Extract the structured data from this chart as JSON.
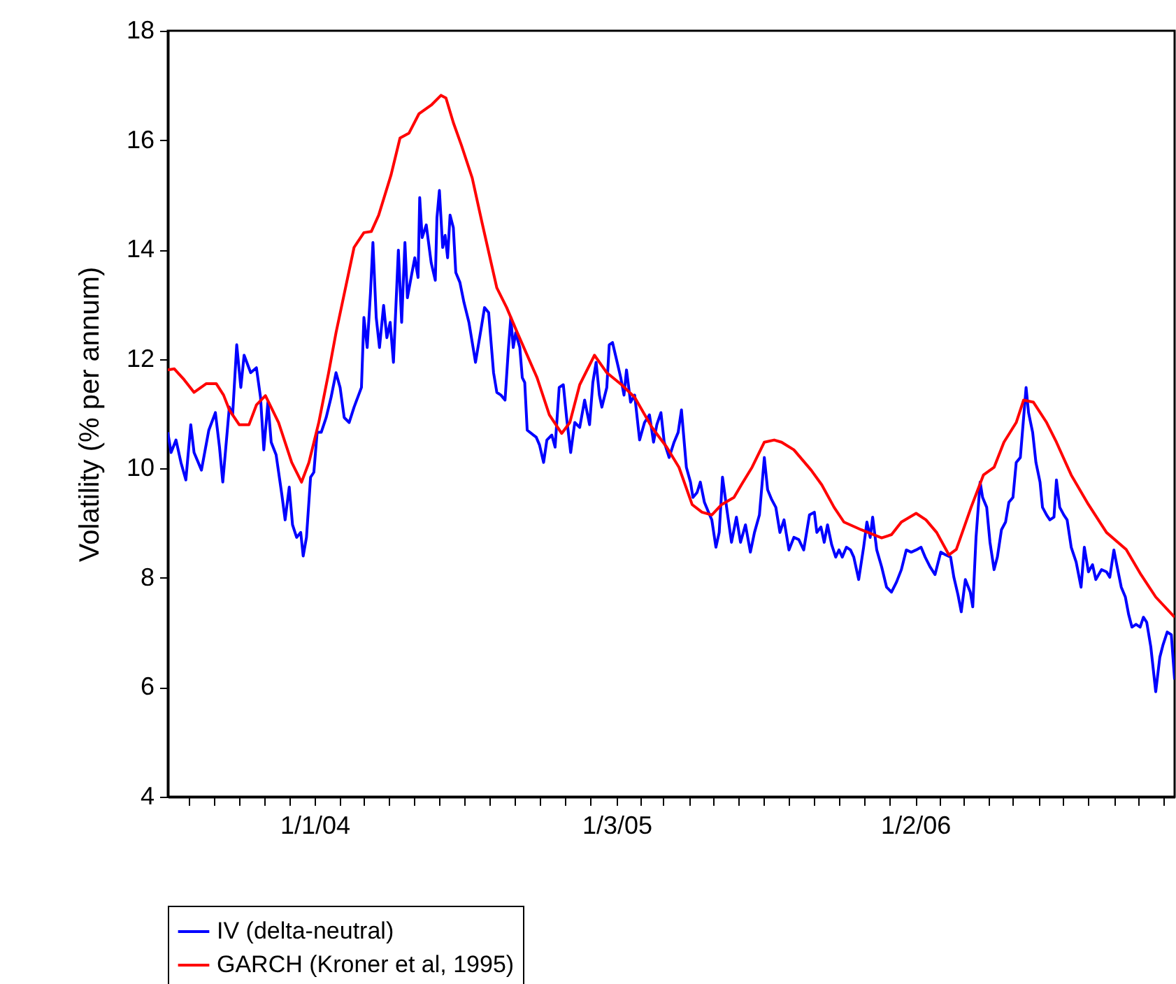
{
  "chart_data": {
    "type": "line",
    "ylabel": "Volatility (% per annum)",
    "xlim": [
      "2003-07-06",
      "2006-11-14"
    ],
    "ylim": [
      4,
      18
    ],
    "yticks": [
      4,
      6,
      8,
      10,
      12,
      14,
      16,
      18
    ],
    "xticks": [
      {
        "value": "2003-08-01",
        "label": null
      },
      {
        "value": "2003-09-01",
        "label": null
      },
      {
        "value": "2003-10-01",
        "label": null
      },
      {
        "value": "2003-11-01",
        "label": null
      },
      {
        "value": "2003-12-01",
        "label": null
      },
      {
        "value": "2004-01-01",
        "label": "1/1/04"
      },
      {
        "value": "2004-02-01",
        "label": null
      },
      {
        "value": "2004-03-01",
        "label": null
      },
      {
        "value": "2004-04-01",
        "label": null
      },
      {
        "value": "2004-05-01",
        "label": null
      },
      {
        "value": "2004-06-01",
        "label": null
      },
      {
        "value": "2004-07-01",
        "label": null
      },
      {
        "value": "2004-08-01",
        "label": null
      },
      {
        "value": "2004-09-01",
        "label": null
      },
      {
        "value": "2004-10-01",
        "label": null
      },
      {
        "value": "2004-11-01",
        "label": null
      },
      {
        "value": "2004-12-01",
        "label": null
      },
      {
        "value": "2005-01-03",
        "label": "1/3/05"
      },
      {
        "value": "2005-02-01",
        "label": null
      },
      {
        "value": "2005-03-01",
        "label": null
      },
      {
        "value": "2005-04-01",
        "label": null
      },
      {
        "value": "2005-05-01",
        "label": null
      },
      {
        "value": "2005-06-01",
        "label": null
      },
      {
        "value": "2005-07-01",
        "label": null
      },
      {
        "value": "2005-08-01",
        "label": null
      },
      {
        "value": "2005-09-01",
        "label": null
      },
      {
        "value": "2005-10-01",
        "label": null
      },
      {
        "value": "2005-11-01",
        "label": null
      },
      {
        "value": "2005-12-01",
        "label": null
      },
      {
        "value": "2006-01-02",
        "label": "1/2/06"
      },
      {
        "value": "2006-02-01",
        "label": null
      },
      {
        "value": "2006-03-01",
        "label": null
      },
      {
        "value": "2006-04-01",
        "label": null
      },
      {
        "value": "2006-05-01",
        "label": null
      },
      {
        "value": "2006-06-01",
        "label": null
      },
      {
        "value": "2006-07-01",
        "label": null
      },
      {
        "value": "2006-08-01",
        "label": null
      },
      {
        "value": "2006-09-01",
        "label": null
      },
      {
        "value": "2006-10-01",
        "label": null
      },
      {
        "value": "2006-11-01",
        "label": null
      }
    ],
    "grid": false,
    "legend": "bottom",
    "series": [
      {
        "name": "IV (delta-neutral)",
        "color": "#0000ff",
        "x": [
          "2003-07-06",
          "2003-07-10",
          "2003-07-16",
          "2003-07-22",
          "2003-07-28",
          "2003-08-03",
          "2003-08-07",
          "2003-08-16",
          "2003-08-25",
          "2003-09-02",
          "2003-09-07",
          "2003-09-11",
          "2003-09-19",
          "2003-09-23",
          "2003-09-28",
          "2003-10-03",
          "2003-10-07",
          "2003-10-15",
          "2003-10-22",
          "2003-10-27",
          "2003-10-31",
          "2003-11-05",
          "2003-11-09",
          "2003-11-15",
          "2003-11-22",
          "2003-11-26",
          "2003-12-01",
          "2003-12-05",
          "2003-12-10",
          "2003-12-15",
          "2003-12-18",
          "2003-12-22",
          "2003-12-27",
          "2003-12-31",
          "2004-01-04",
          "2004-01-09",
          "2004-01-15",
          "2004-01-21",
          "2004-01-27",
          "2004-02-01",
          "2004-02-06",
          "2004-02-12",
          "2004-02-18",
          "2004-02-27",
          "2004-03-01",
          "2004-03-05",
          "2004-03-09",
          "2004-03-12",
          "2004-03-16",
          "2004-03-20",
          "2004-03-25",
          "2004-03-29",
          "2004-04-02",
          "2004-04-06",
          "2004-04-12",
          "2004-04-16",
          "2004-04-20",
          "2004-04-23",
          "2004-04-28",
          "2004-05-02",
          "2004-05-06",
          "2004-05-08",
          "2004-05-11",
          "2004-05-16",
          "2004-05-22",
          "2004-05-27",
          "2004-05-29",
          "2004-06-01",
          "2004-06-05",
          "2004-06-08",
          "2004-06-11",
          "2004-06-14",
          "2004-06-18",
          "2004-06-21",
          "2004-06-26",
          "2004-07-01",
          "2004-07-07",
          "2004-07-15",
          "2004-07-22",
          "2004-07-26",
          "2004-07-31",
          "2004-08-06",
          "2004-08-10",
          "2004-08-15",
          "2004-08-20",
          "2004-08-24",
          "2004-08-27",
          "2004-08-30",
          "2004-09-02",
          "2004-09-07",
          "2004-09-10",
          "2004-09-13",
          "2004-09-16",
          "2004-09-27",
          "2004-10-01",
          "2004-10-06",
          "2004-10-10",
          "2004-10-16",
          "2004-10-20",
          "2004-10-25",
          "2004-10-30",
          "2004-11-03",
          "2004-11-08",
          "2004-11-13",
          "2004-11-19",
          "2004-11-25",
          "2004-12-01",
          "2004-12-05",
          "2004-12-09",
          "2004-12-13",
          "2004-12-16",
          "2004-12-22",
          "2004-12-25",
          "2004-12-29",
          "2005-01-03",
          "2005-01-08",
          "2005-01-12",
          "2005-01-15",
          "2005-01-20",
          "2005-01-25",
          "2005-01-31",
          "2005-02-06",
          "2005-02-12",
          "2005-02-17",
          "2005-02-21",
          "2005-02-26",
          "2005-03-02",
          "2005-03-08",
          "2005-03-14",
          "2005-03-19",
          "2005-03-23",
          "2005-03-29",
          "2005-04-03",
          "2005-04-06",
          "2005-04-11",
          "2005-04-15",
          "2005-04-20",
          "2005-04-25",
          "2005-04-29",
          "2005-05-04",
          "2005-05-08",
          "2005-05-12",
          "2005-05-17",
          "2005-05-23",
          "2005-05-29",
          "2005-06-03",
          "2005-06-09",
          "2005-06-15",
          "2005-06-20",
          "2005-06-26",
          "2005-07-02",
          "2005-07-06",
          "2005-07-11",
          "2005-07-16",
          "2005-07-21",
          "2005-07-26",
          "2005-08-01",
          "2005-08-07",
          "2005-08-13",
          "2005-08-19",
          "2005-08-26",
          "2005-09-01",
          "2005-09-04",
          "2005-09-09",
          "2005-09-13",
          "2005-09-17",
          "2005-09-22",
          "2005-09-27",
          "2005-10-01",
          "2005-10-05",
          "2005-10-10",
          "2005-10-15",
          "2005-10-19",
          "2005-10-25",
          "2005-10-31",
          "2005-11-04",
          "2005-11-08",
          "2005-11-11",
          "2005-11-16",
          "2005-11-22",
          "2005-11-28",
          "2005-12-04",
          "2005-12-10",
          "2005-12-16",
          "2005-12-22",
          "2005-12-28",
          "2006-01-03",
          "2006-01-09",
          "2006-01-14",
          "2006-01-20",
          "2006-01-26",
          "2006-02-02",
          "2006-02-08",
          "2006-02-14",
          "2006-02-18",
          "2006-02-23",
          "2006-02-27",
          "2006-03-04",
          "2006-03-10",
          "2006-03-13",
          "2006-03-17",
          "2006-03-22",
          "2006-03-25",
          "2006-03-30",
          "2006-04-03",
          "2006-04-08",
          "2006-04-12",
          "2006-04-17",
          "2006-04-22",
          "2006-04-26",
          "2006-05-01",
          "2006-05-05",
          "2006-05-10",
          "2006-05-14",
          "2006-05-17",
          "2006-05-20",
          "2006-05-25",
          "2006-05-29",
          "2006-06-03",
          "2006-06-06",
          "2006-06-11",
          "2006-06-15",
          "2006-06-20",
          "2006-06-23",
          "2006-06-27",
          "2006-07-02",
          "2006-07-06",
          "2006-07-11",
          "2006-07-17",
          "2006-07-23",
          "2006-07-27",
          "2006-08-01",
          "2006-08-06",
          "2006-08-10",
          "2006-08-17",
          "2006-08-23",
          "2006-08-27",
          "2006-09-01",
          "2006-09-05",
          "2006-09-10",
          "2006-09-15",
          "2006-09-19",
          "2006-09-23",
          "2006-09-28",
          "2006-10-03",
          "2006-10-07",
          "2006-10-11",
          "2006-10-16",
          "2006-10-22",
          "2006-10-27",
          "2006-10-31",
          "2006-11-05",
          "2006-11-10",
          "2006-11-12",
          "2006-11-14"
        ],
        "values": [
          10.66,
          10.29,
          10.52,
          10.11,
          9.79,
          10.8,
          10.29,
          9.97,
          10.7,
          11.02,
          10.39,
          9.75,
          11.12,
          10.98,
          12.26,
          11.48,
          12.07,
          11.75,
          11.84,
          11.3,
          10.34,
          11.21,
          10.48,
          10.25,
          9.52,
          9.06,
          9.66,
          8.97,
          8.74,
          8.83,
          8.4,
          8.74,
          9.84,
          9.93,
          10.66,
          10.66,
          10.93,
          11.3,
          11.75,
          11.48,
          10.93,
          10.84,
          11.12,
          11.48,
          12.76,
          12.21,
          13.21,
          14.13,
          12.76,
          12.21,
          12.98,
          12.39,
          12.67,
          11.94,
          13.99,
          12.67,
          14.13,
          13.12,
          13.53,
          13.85,
          13.49,
          14.95,
          14.22,
          14.45,
          13.76,
          13.44,
          14.58,
          15.08,
          14.04,
          14.26,
          13.85,
          14.63,
          14.4,
          13.58,
          13.4,
          13.03,
          12.67,
          11.94,
          12.57,
          12.94,
          12.85,
          11.75,
          11.39,
          11.34,
          11.25,
          12.17,
          12.76,
          12.21,
          12.48,
          12.21,
          11.66,
          11.57,
          10.7,
          10.57,
          10.43,
          10.11,
          10.52,
          10.61,
          10.39,
          11.48,
          11.53,
          10.93,
          10.29,
          10.84,
          10.75,
          11.25,
          10.8,
          11.57,
          11.94,
          11.34,
          11.12,
          11.48,
          12.26,
          12.3,
          11.98,
          11.66,
          11.34,
          11.8,
          11.21,
          11.34,
          10.52,
          10.84,
          10.98,
          10.48,
          10.8,
          11.02,
          10.48,
          10.2,
          10.48,
          10.66,
          11.07,
          10.02,
          9.75,
          9.47,
          9.56,
          9.75,
          9.38,
          9.2,
          9.06,
          8.56,
          8.83,
          9.84,
          9.29,
          8.65,
          9.11,
          8.65,
          8.97,
          8.47,
          8.83,
          9.15,
          10.2,
          9.61,
          9.43,
          9.29,
          8.83,
          9.06,
          8.51,
          8.74,
          8.7,
          8.51,
          9.15,
          9.2,
          8.83,
          8.93,
          8.65,
          8.97,
          8.61,
          8.38,
          8.51,
          8.38,
          8.56,
          8.51,
          8.38,
          7.97,
          8.56,
          9.02,
          8.74,
          9.11,
          8.51,
          8.2,
          7.83,
          7.74,
          7.92,
          8.15,
          8.51,
          8.47,
          8.51,
          8.56,
          8.38,
          8.2,
          8.06,
          8.47,
          8.42,
          8.38,
          8.01,
          7.69,
          7.38,
          7.97,
          7.74,
          7.47,
          8.74,
          9.75,
          9.47,
          9.29,
          8.65,
          8.15,
          8.38,
          8.88,
          9.02,
          9.38,
          9.47,
          10.11,
          10.2,
          10.93,
          11.48,
          11.02,
          10.66,
          10.11,
          9.75,
          9.29,
          9.15,
          9.06,
          9.11,
          9.79,
          9.29,
          9.15,
          9.06,
          8.56,
          8.29,
          7.83,
          8.56,
          8.11,
          8.24,
          7.97,
          8.15,
          8.11,
          8.01,
          8.51,
          8.2,
          7.83,
          7.65,
          7.33,
          7.1,
          7.15,
          7.1,
          7.28,
          7.19,
          6.74,
          5.92,
          6.55,
          6.78,
          7.01,
          6.96,
          6.55,
          6.14
        ]
      },
      {
        "name": "GARCH (Kroner et al, 1995)",
        "color": "#ff0000",
        "x": [
          "2003-07-06",
          "2003-07-14",
          "2003-07-26",
          "2003-08-07",
          "2003-08-22",
          "2003-09-03",
          "2003-09-12",
          "2003-09-19",
          "2003-10-01",
          "2003-10-13",
          "2003-10-22",
          "2003-11-02",
          "2003-11-18",
          "2003-12-04",
          "2003-12-16",
          "2003-12-25",
          "2004-01-06",
          "2004-01-18",
          "2004-01-27",
          "2004-02-18",
          "2004-03-01",
          "2004-03-10",
          "2004-03-19",
          "2004-04-03",
          "2004-04-14",
          "2004-04-25",
          "2004-05-07",
          "2004-05-22",
          "2004-06-03",
          "2004-06-09",
          "2004-06-18",
          "2004-06-28",
          "2004-07-11",
          "2004-07-23",
          "2004-08-10",
          "2004-08-22",
          "2004-09-04",
          "2004-09-28",
          "2004-10-13",
          "2004-10-28",
          "2004-11-07",
          "2004-11-19",
          "2004-12-07",
          "2004-12-22",
          "2005-01-09",
          "2005-01-25",
          "2005-02-15",
          "2005-03-05",
          "2005-03-20",
          "2005-04-05",
          "2005-04-17",
          "2005-04-29",
          "2005-05-11",
          "2005-05-26",
          "2005-06-04",
          "2005-06-17",
          "2005-07-02",
          "2005-07-14",
          "2005-07-23",
          "2005-08-07",
          "2005-08-28",
          "2005-09-10",
          "2005-09-25",
          "2005-10-07",
          "2005-10-28",
          "2005-11-22",
          "2005-12-04",
          "2005-12-16",
          "2006-01-03",
          "2006-01-15",
          "2006-01-28",
          "2006-02-12",
          "2006-02-21",
          "2006-03-11",
          "2006-03-26",
          "2006-04-08",
          "2006-04-20",
          "2006-05-05",
          "2006-05-14",
          "2006-05-26",
          "2006-06-11",
          "2006-06-23",
          "2006-07-11",
          "2006-08-01",
          "2006-08-23",
          "2006-09-16",
          "2006-10-04",
          "2006-10-22",
          "2006-11-14"
        ],
        "values": [
          11.8,
          11.82,
          11.62,
          11.39,
          11.55,
          11.55,
          11.34,
          11.07,
          10.8,
          10.8,
          11.16,
          11.33,
          10.84,
          10.11,
          9.75,
          10.11,
          10.84,
          11.75,
          12.48,
          14.04,
          14.31,
          14.33,
          14.63,
          15.36,
          16.04,
          16.13,
          16.48,
          16.64,
          16.82,
          16.77,
          16.32,
          15.9,
          15.31,
          14.49,
          13.3,
          12.94,
          12.48,
          11.66,
          10.98,
          10.64,
          10.84,
          11.53,
          12.07,
          11.75,
          11.53,
          11.3,
          10.75,
          10.39,
          10.02,
          9.34,
          9.2,
          9.15,
          9.34,
          9.47,
          9.7,
          10.02,
          10.48,
          10.52,
          10.48,
          10.34,
          9.97,
          9.7,
          9.29,
          9.02,
          8.88,
          8.73,
          8.79,
          9.02,
          9.18,
          9.06,
          8.83,
          8.42,
          8.52,
          9.29,
          9.88,
          10.02,
          10.48,
          10.84,
          11.25,
          11.21,
          10.84,
          10.48,
          9.88,
          9.34,
          8.83,
          8.52,
          8.06,
          7.65,
          7.28
        ]
      }
    ]
  }
}
